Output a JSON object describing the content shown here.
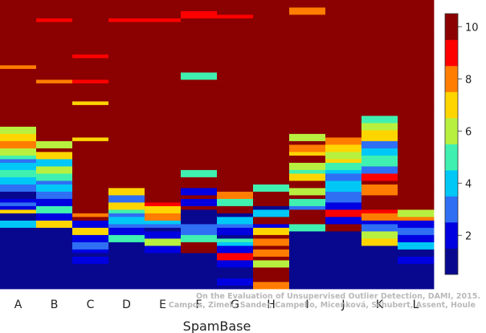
{
  "chart_data": {
    "type": "heatmap",
    "title": "",
    "xlabel": "SpamBase",
    "ylabel": "",
    "categories": [
      "A",
      "B",
      "C",
      "D",
      "E",
      "F",
      "G",
      "H",
      "I",
      "J",
      "K",
      "L"
    ],
    "colorbar": {
      "min": 0.5,
      "max": 10.5,
      "ticks": [
        2,
        4,
        6,
        8,
        10
      ],
      "ramp": [
        "#08088f",
        "#0000e0",
        "#2f6ff4",
        "#00c8f6",
        "#40f0b0",
        "#b8f040",
        "#ffd500",
        "#ff7d00",
        "#ff0000",
        "#8b0000"
      ]
    },
    "columns": [
      {
        "name": "A",
        "ranks": [
          1,
          1,
          1,
          1,
          1,
          1,
          1,
          1,
          1,
          1,
          1,
          1,
          1,
          1,
          1,
          1,
          1,
          4,
          4,
          1,
          1,
          7,
          2,
          3,
          2,
          1,
          1,
          3,
          3,
          4,
          4,
          5,
          5,
          4,
          4,
          3,
          5,
          6,
          6,
          8,
          8,
          7,
          7,
          6,
          6,
          10,
          10,
          10,
          10,
          10,
          10,
          10,
          10,
          10,
          10,
          10,
          10,
          10,
          10,
          10,
          10,
          8,
          10,
          10,
          10,
          10,
          10,
          10,
          10,
          10,
          10,
          10,
          10,
          10,
          10,
          10,
          10,
          10,
          10,
          10
        ]
      },
      {
        "name": "B",
        "ranks": [
          1,
          1,
          1,
          1,
          1,
          1,
          1,
          1,
          1,
          1,
          1,
          1,
          1,
          1,
          1,
          1,
          1,
          7,
          7,
          2,
          2,
          5,
          5,
          2,
          2,
          3,
          3,
          4,
          4,
          3,
          5,
          5,
          6,
          6,
          4,
          4,
          7,
          7,
          10,
          6,
          6,
          10,
          10,
          10,
          10,
          10,
          10,
          10,
          10,
          10,
          10,
          10,
          10,
          10,
          10,
          10,
          10,
          8,
          10,
          10,
          10,
          10,
          10,
          10,
          10,
          10,
          10,
          10,
          10,
          10,
          10,
          10,
          10,
          10,
          9,
          10,
          10,
          10,
          10,
          10
        ]
      },
      {
        "name": "C",
        "ranks": [
          1,
          1,
          1,
          1,
          1,
          1,
          1,
          2,
          2,
          1,
          2,
          3,
          3,
          2,
          2,
          7,
          7,
          2,
          2,
          10,
          8,
          10,
          10,
          10,
          10,
          10,
          10,
          10,
          10,
          10,
          10,
          10,
          10,
          10,
          10,
          10,
          10,
          10,
          10,
          10,
          10,
          7,
          10,
          10,
          10,
          10,
          10,
          10,
          10,
          10,
          10,
          7,
          10,
          10,
          10,
          10,
          10,
          9,
          10,
          10,
          10,
          10,
          10,
          10,
          9,
          10,
          10,
          10,
          10,
          10,
          10,
          10,
          10,
          10,
          10,
          10,
          10,
          10,
          10,
          10
        ]
      },
      {
        "name": "D",
        "ranks": [
          1,
          1,
          1,
          1,
          1,
          1,
          1,
          1,
          1,
          1,
          1,
          1,
          1,
          5,
          5,
          2,
          2,
          3,
          4,
          4,
          3,
          5,
          7,
          7,
          3,
          3,
          7,
          7,
          10,
          10,
          10,
          10,
          10,
          10,
          10,
          10,
          10,
          10,
          10,
          10,
          10,
          10,
          10,
          10,
          10,
          10,
          10,
          10,
          10,
          10,
          10,
          10,
          10,
          10,
          10,
          10,
          10,
          10,
          10,
          10,
          10,
          10,
          10,
          10,
          10,
          10,
          10,
          10,
          10,
          10,
          10,
          10,
          10,
          10,
          9,
          10,
          10,
          10,
          10,
          10
        ]
      },
      {
        "name": "E",
        "ranks": [
          1,
          1,
          1,
          1,
          1,
          1,
          1,
          1,
          1,
          1,
          2,
          2,
          6,
          6,
          2,
          2,
          1,
          3,
          4,
          8,
          8,
          7,
          7,
          9,
          10,
          10,
          10,
          10,
          10,
          10,
          10,
          10,
          10,
          10,
          10,
          10,
          10,
          10,
          10,
          10,
          10,
          10,
          10,
          10,
          10,
          10,
          10,
          10,
          10,
          10,
          10,
          10,
          10,
          10,
          10,
          10,
          10,
          10,
          10,
          10,
          10,
          10,
          10,
          10,
          10,
          10,
          10,
          10,
          10,
          10,
          10,
          10,
          10,
          10,
          9,
          10,
          10,
          10,
          10,
          10
        ]
      },
      {
        "name": "F",
        "ranks": [
          1,
          1,
          1,
          1,
          1,
          1,
          1,
          1,
          1,
          1,
          10,
          10,
          10,
          5,
          5,
          3,
          3,
          3,
          1,
          1,
          1,
          1,
          10,
          2,
          2,
          10,
          2,
          2,
          10,
          10,
          10,
          5,
          5,
          10,
          10,
          10,
          10,
          10,
          10,
          10,
          10,
          10,
          10,
          10,
          10,
          10,
          10,
          10,
          10,
          10,
          10,
          10,
          10,
          10,
          10,
          10,
          10,
          10,
          5,
          5,
          10,
          10,
          10,
          10,
          10,
          10,
          10,
          10,
          10,
          10,
          10,
          10,
          10,
          10,
          10,
          9,
          9,
          10,
          10,
          10
        ]
      },
      {
        "name": "G",
        "ranks": [
          1,
          2,
          2,
          1,
          1,
          1,
          2,
          2,
          9,
          9,
          2,
          2,
          4,
          5,
          1,
          2,
          2,
          3,
          4,
          4,
          1,
          10,
          10,
          5,
          5,
          8,
          8,
          10,
          10,
          10,
          10,
          10,
          10,
          10,
          10,
          10,
          10,
          10,
          10,
          10,
          10,
          10,
          10,
          10,
          10,
          10,
          10,
          10,
          10,
          10,
          10,
          10,
          10,
          10,
          10,
          10,
          10,
          10,
          10,
          10,
          10,
          10,
          10,
          10,
          10,
          10,
          10,
          10,
          10,
          10,
          10,
          10,
          10,
          10,
          10,
          9,
          10,
          10,
          10,
          10
        ]
      },
      {
        "name": "H",
        "ranks": [
          8,
          8,
          10,
          10,
          10,
          10,
          6,
          6,
          10,
          8,
          8,
          10,
          8,
          8,
          10,
          7,
          7,
          2,
          10,
          10,
          4,
          4,
          1,
          10,
          10,
          10,
          10,
          5,
          5,
          10,
          10,
          10,
          10,
          10,
          10,
          10,
          10,
          10,
          10,
          10,
          10,
          10,
          10,
          10,
          10,
          10,
          10,
          10,
          10,
          10,
          10,
          10,
          10,
          10,
          10,
          10,
          10,
          10,
          10,
          10,
          10,
          10,
          10,
          10,
          10,
          10,
          10,
          10,
          10,
          10,
          10,
          10,
          10,
          10,
          10,
          10,
          10,
          10,
          10,
          10
        ]
      },
      {
        "name": "I",
        "ranks": [
          1,
          1,
          1,
          1,
          1,
          1,
          1,
          1,
          1,
          1,
          1,
          1,
          1,
          1,
          1,
          1,
          5,
          5,
          10,
          10,
          10,
          10,
          3,
          5,
          5,
          10,
          6,
          6,
          10,
          10,
          7,
          7,
          5,
          6,
          6,
          10,
          10,
          7,
          8,
          8,
          10,
          6,
          6,
          10,
          10,
          10,
          10,
          10,
          10,
          10,
          10,
          10,
          10,
          10,
          10,
          10,
          10,
          10,
          10,
          10,
          10,
          10,
          10,
          10,
          10,
          10,
          10,
          10,
          10,
          10,
          10,
          10,
          10,
          10,
          10,
          10,
          8,
          8,
          10,
          10
        ]
      },
      {
        "name": "J",
        "ranks": [
          1,
          1,
          1,
          1,
          1,
          1,
          1,
          1,
          1,
          1,
          1,
          1,
          1,
          1,
          1,
          1,
          10,
          10,
          2,
          2,
          9,
          9,
          2,
          2,
          3,
          3,
          3,
          4,
          4,
          4,
          3,
          3,
          4,
          5,
          5,
          7,
          6,
          6,
          7,
          7,
          8,
          8,
          10,
          10,
          10,
          10,
          10,
          10,
          10,
          10,
          10,
          10,
          10,
          10,
          10,
          10,
          10,
          10,
          10,
          10,
          10,
          10,
          10,
          10,
          10,
          10,
          10,
          10,
          10,
          10,
          10,
          10,
          10,
          10,
          10,
          10,
          10,
          10,
          10,
          10
        ]
      },
      {
        "name": "K",
        "ranks": [
          1,
          1,
          1,
          1,
          1,
          1,
          1,
          1,
          1,
          1,
          1,
          1,
          7,
          7,
          6,
          6,
          3,
          3,
          2,
          8,
          8,
          9,
          10,
          10,
          10,
          10,
          8,
          8,
          8,
          10,
          9,
          9,
          3,
          3,
          5,
          5,
          5,
          4,
          4,
          3,
          3,
          7,
          7,
          7,
          6,
          6,
          5,
          5,
          10,
          10,
          10,
          10,
          10,
          10,
          10,
          10,
          10,
          10,
          10,
          10,
          10,
          10,
          10,
          10,
          10,
          10,
          10,
          10,
          10,
          10,
          10,
          10,
          10,
          10,
          10,
          10,
          10,
          10,
          10,
          10
        ]
      },
      {
        "name": "L",
        "ranks": [
          1,
          1,
          1,
          1,
          1,
          1,
          1,
          2,
          2,
          1,
          1,
          4,
          4,
          2,
          2,
          3,
          3,
          2,
          2,
          8,
          6,
          6,
          10,
          10,
          10,
          10,
          10,
          10,
          10,
          10,
          10,
          10,
          10,
          10,
          10,
          10,
          10,
          10,
          10,
          10,
          10,
          10,
          10,
          10,
          10,
          10,
          10,
          10,
          10,
          10,
          10,
          10,
          10,
          10,
          10,
          10,
          10,
          10,
          10,
          10,
          10,
          10,
          10,
          10,
          10,
          10,
          10,
          10,
          10,
          10,
          10,
          10,
          10,
          10,
          10,
          10,
          10,
          10,
          10,
          10
        ]
      }
    ]
  },
  "watermark": {
    "line1": "On the Evaluation of Unsupervised Outlier Detection, DAMI, 2015.",
    "line2": "Campos, Zimek, Sander, Campello, Micenková, Schubert, Assent, Houle"
  }
}
